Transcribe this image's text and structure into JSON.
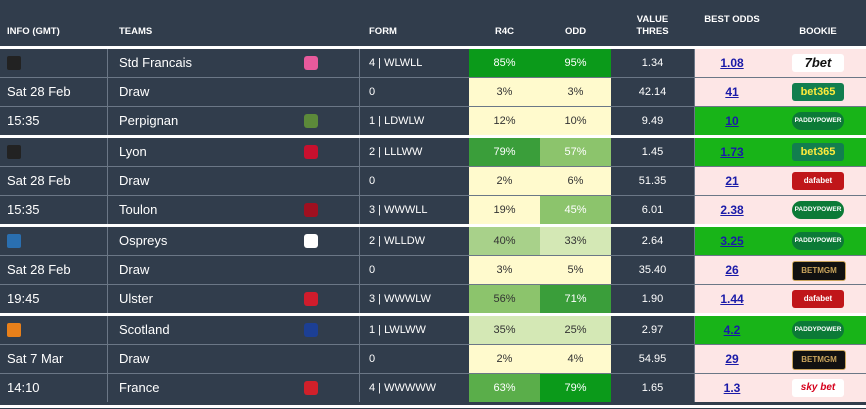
{
  "headers": {
    "info": "INFO (GMT)",
    "teams": "TEAMS",
    "form": "FORM",
    "r4c": "R4C",
    "odd": "ODD",
    "value": "VALUE THRES",
    "best": "BEST ODDS",
    "bookie": "BOOKIE"
  },
  "matches": [
    {
      "comp_icon": "top14-icon",
      "comp_color": "#222222",
      "rows": [
        {
          "info": "",
          "team": "Std Francais",
          "team_icon": "stade-francais-crest-icon",
          "team_color": "#e75a9c",
          "form": "4 | WLWLL",
          "r4c": "85%",
          "odd": "95%",
          "r4c_bg": "#0b9a1a",
          "odd_bg": "#0b9a1a",
          "r4c_fg": "#ffffff",
          "odd_fg": "#ffffff",
          "value": "1.34",
          "best": "1.08",
          "best_hi": false,
          "bookie": "7bet",
          "bookie_style": "b-7bet"
        },
        {
          "info": "Sat 28 Feb",
          "team": "Draw",
          "team_icon": "",
          "team_color": "",
          "form": "0",
          "r4c": "3%",
          "odd": "3%",
          "r4c_bg": "#fffacd",
          "odd_bg": "#fffacd",
          "r4c_fg": "#333333",
          "odd_fg": "#333333",
          "value": "42.14",
          "best": "41",
          "best_hi": false,
          "bookie": "bet365",
          "bookie_style": "b-365"
        },
        {
          "info": "15:35",
          "team": "Perpignan",
          "team_icon": "perpignan-crest-icon",
          "team_color": "#5c8a3a",
          "form": "1 | LDWLW",
          "r4c": "12%",
          "odd": "10%",
          "r4c_bg": "#fffacd",
          "odd_bg": "#fffacd",
          "r4c_fg": "#333333",
          "odd_fg": "#333333",
          "value": "9.49",
          "best": "10",
          "best_hi": true,
          "bookie": "PADDYPOWER",
          "bookie_style": "b-paddy"
        }
      ]
    },
    {
      "comp_icon": "top14-icon",
      "comp_color": "#222222",
      "rows": [
        {
          "info": "",
          "team": "Lyon",
          "team_icon": "lyon-crest-icon",
          "team_color": "#c8102e",
          "form": "2 | LLLWW",
          "r4c": "79%",
          "odd": "57%",
          "r4c_bg": "#3a9e3a",
          "odd_bg": "#8cc46c",
          "r4c_fg": "#ffffff",
          "odd_fg": "#ffffff",
          "value": "1.45",
          "best": "1.73",
          "best_hi": true,
          "bookie": "bet365",
          "bookie_style": "b-365"
        },
        {
          "info": "Sat 28 Feb",
          "team": "Draw",
          "team_icon": "",
          "team_color": "",
          "form": "0",
          "r4c": "2%",
          "odd": "6%",
          "r4c_bg": "#fffacd",
          "odd_bg": "#fffacd",
          "r4c_fg": "#333333",
          "odd_fg": "#333333",
          "value": "51.35",
          "best": "21",
          "best_hi": false,
          "bookie": "dafabet",
          "bookie_style": "b-dafa"
        },
        {
          "info": "15:35",
          "team": "Toulon",
          "team_icon": "toulon-crest-icon",
          "team_color": "#a01020",
          "form": "3 | WWWLL",
          "r4c": "19%",
          "odd": "45%",
          "r4c_bg": "#fffacd",
          "odd_bg": "#8cc46c",
          "r4c_fg": "#333333",
          "odd_fg": "#ffffff",
          "value": "6.01",
          "best": "2.38",
          "best_hi": false,
          "bookie": "PADDYPOWER",
          "bookie_style": "b-paddy"
        }
      ]
    },
    {
      "comp_icon": "urc-icon",
      "comp_color": "#2a6fb0",
      "rows": [
        {
          "info": "",
          "team": "Ospreys",
          "team_icon": "ospreys-crest-icon",
          "team_color": "#ffffff",
          "form": "2 | WLLDW",
          "r4c": "40%",
          "odd": "33%",
          "r4c_bg": "#a8d18a",
          "odd_bg": "#d4e8b5",
          "r4c_fg": "#333333",
          "odd_fg": "#333333",
          "value": "2.64",
          "best": "3.25",
          "best_hi": true,
          "bookie": "PADDYPOWER",
          "bookie_style": "b-paddy"
        },
        {
          "info": "Sat 28 Feb",
          "team": "Draw",
          "team_icon": "",
          "team_color": "",
          "form": "0",
          "r4c": "3%",
          "odd": "5%",
          "r4c_bg": "#fffacd",
          "odd_bg": "#fffacd",
          "r4c_fg": "#333333",
          "odd_fg": "#333333",
          "value": "35.40",
          "best": "26",
          "best_hi": false,
          "bookie": "BETMGM",
          "bookie_style": "b-mgm"
        },
        {
          "info": "19:45",
          "team": "Ulster",
          "team_icon": "ulster-crest-icon",
          "team_color": "#d01c2c",
          "form": "3 | WWWLW",
          "r4c": "56%",
          "odd": "71%",
          "r4c_bg": "#8cc46c",
          "odd_bg": "#3a9e3a",
          "r4c_fg": "#333333",
          "odd_fg": "#ffffff",
          "value": "1.90",
          "best": "1.44",
          "best_hi": false,
          "bookie": "dafabet",
          "bookie_style": "b-dafa"
        }
      ]
    },
    {
      "comp_icon": "six-nations-icon",
      "comp_color": "#e8801a",
      "rows": [
        {
          "info": "",
          "team": "Scotland",
          "team_icon": "scotland-crest-icon",
          "team_color": "#1c3f94",
          "form": "1 | LWLWW",
          "r4c": "35%",
          "odd": "25%",
          "r4c_bg": "#d4e8b5",
          "odd_bg": "#d4e8b5",
          "r4c_fg": "#333333",
          "odd_fg": "#333333",
          "value": "2.97",
          "best": "4.2",
          "best_hi": true,
          "bookie": "PADDYPOWER",
          "bookie_style": "b-paddy"
        },
        {
          "info": "Sat 7 Mar",
          "team": "Draw",
          "team_icon": "",
          "team_color": "",
          "form": "0",
          "r4c": "2%",
          "odd": "4%",
          "r4c_bg": "#fffacd",
          "odd_bg": "#fffacd",
          "r4c_fg": "#333333",
          "odd_fg": "#333333",
          "value": "54.95",
          "best": "29",
          "best_hi": false,
          "bookie": "BETMGM",
          "bookie_style": "b-mgm"
        },
        {
          "info": "14:10",
          "team": "France",
          "team_icon": "france-rooster-icon",
          "team_color": "#d0202a",
          "form": "4 | WWWWW",
          "r4c": "63%",
          "odd": "79%",
          "r4c_bg": "#5aae4a",
          "odd_bg": "#0b9a1a",
          "r4c_fg": "#ffffff",
          "odd_fg": "#ffffff",
          "value": "1.65",
          "best": "1.3",
          "best_hi": false,
          "bookie": "sky bet",
          "bookie_style": "b-sky"
        }
      ]
    }
  ]
}
